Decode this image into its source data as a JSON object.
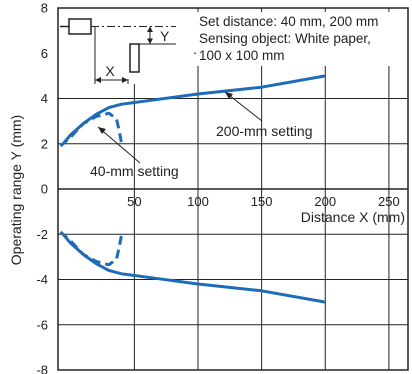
{
  "chart_data": {
    "type": "line",
    "xlabel": "Distance X (mm)",
    "ylabel": "Operating range Y (mm)",
    "xlim": [
      -10,
      265
    ],
    "ylim": [
      -8,
      8
    ],
    "x_ticks": [
      50,
      100,
      150,
      200,
      250
    ],
    "y_ticks": [
      8,
      6,
      4,
      2,
      0,
      -2,
      -4,
      -6,
      -8
    ],
    "grid": true,
    "line_color": "#1e6bb8",
    "info_lines": [
      "Set distance: 40 mm, 200 mm",
      "Sensing object: White paper,",
      "100 x 100 mm"
    ],
    "diagram_labels": {
      "x": "X",
      "y": "Y"
    },
    "series": [
      {
        "name": "200-mm setting",
        "style": "solid",
        "upper": [
          [
            -6,
            2.0
          ],
          [
            0,
            2.4
          ],
          [
            10,
            2.9
          ],
          [
            20,
            3.3
          ],
          [
            30,
            3.6
          ],
          [
            40,
            3.75
          ],
          [
            60,
            3.9
          ],
          [
            100,
            4.2
          ],
          [
            150,
            4.5
          ],
          [
            200,
            5.0
          ]
        ],
        "lower": [
          [
            -6,
            -2.0
          ],
          [
            0,
            -2.4
          ],
          [
            10,
            -2.9
          ],
          [
            20,
            -3.3
          ],
          [
            30,
            -3.6
          ],
          [
            40,
            -3.75
          ],
          [
            60,
            -3.9
          ],
          [
            100,
            -4.2
          ],
          [
            150,
            -4.5
          ],
          [
            200,
            -5.0
          ]
        ]
      },
      {
        "name": "40-mm setting",
        "style": "dashed",
        "upper": [
          [
            -8,
            1.9
          ],
          [
            0,
            2.3
          ],
          [
            10,
            2.9
          ],
          [
            20,
            3.2
          ],
          [
            30,
            3.35
          ],
          [
            36,
            3.1
          ],
          [
            38,
            2.6
          ],
          [
            40,
            2.0
          ]
        ],
        "lower": [
          [
            -8,
            -1.9
          ],
          [
            0,
            -2.3
          ],
          [
            10,
            -2.9
          ],
          [
            20,
            -3.2
          ],
          [
            30,
            -3.35
          ],
          [
            36,
            -3.1
          ],
          [
            38,
            -2.6
          ],
          [
            40,
            -2.0
          ]
        ]
      }
    ],
    "annotations": [
      {
        "text": "200-mm setting",
        "for_series": "200-mm setting",
        "point": [
          108,
          4.2
        ]
      },
      {
        "text": "40-mm setting",
        "for_series": "40-mm setting",
        "point": [
          23,
          3.5
        ]
      }
    ]
  }
}
